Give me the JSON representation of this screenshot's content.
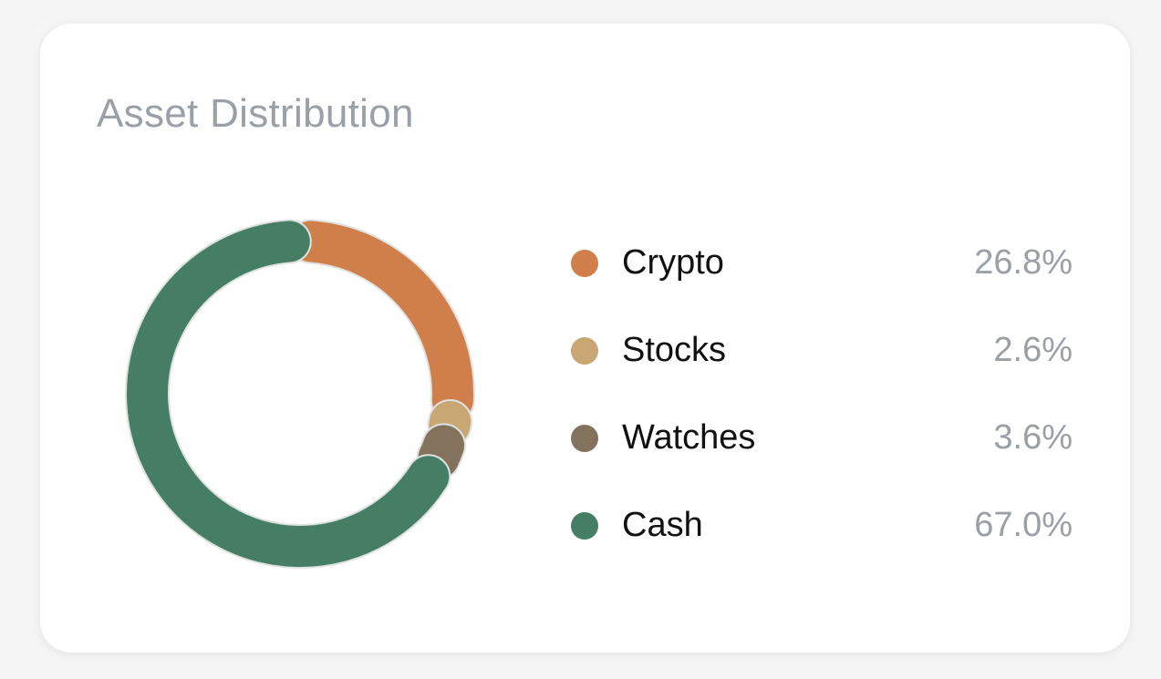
{
  "card": {
    "title": "Asset Distribution"
  },
  "chart_data": {
    "type": "pie",
    "variant": "donut",
    "title": "Asset Distribution",
    "slices": [
      {
        "label": "Crypto",
        "value": 26.8,
        "display": "26.8%",
        "color": "#d07f4b"
      },
      {
        "label": "Stocks",
        "value": 2.6,
        "display": "2.6%",
        "color": "#c9a775"
      },
      {
        "label": "Watches",
        "value": 3.6,
        "display": "3.6%",
        "color": "#83725c"
      },
      {
        "label": "Cash",
        "value": 67.0,
        "display": "67.0%",
        "color": "#457e64"
      }
    ],
    "legend_placement": "right",
    "start": "top",
    "direction": "clockwise"
  }
}
